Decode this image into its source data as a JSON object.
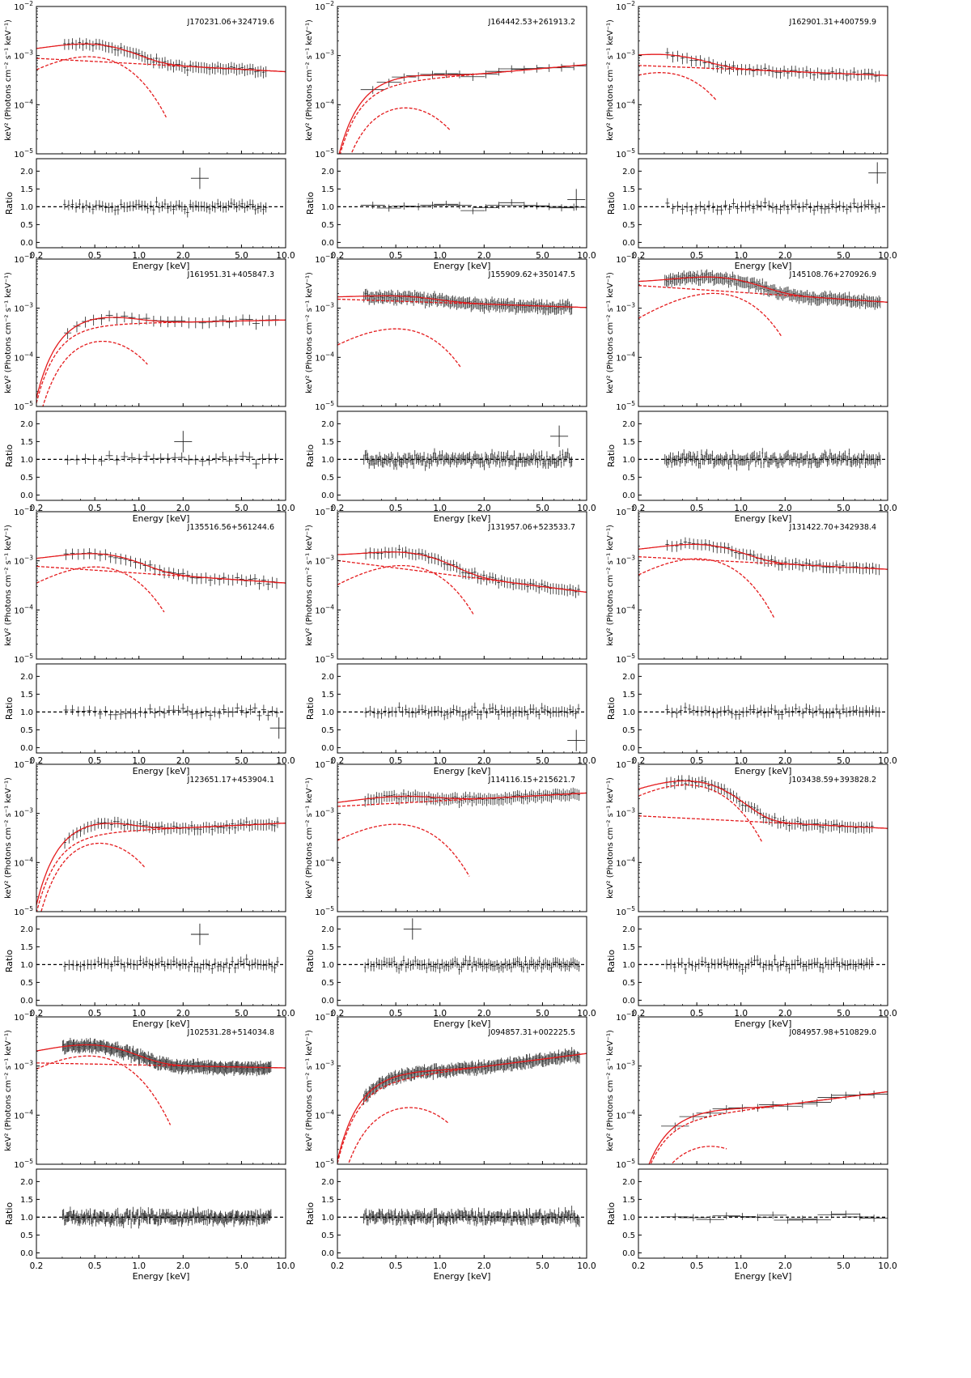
{
  "figure": {
    "colors": {
      "model": "#e41a1c",
      "data": "#222222",
      "axis": "#000000",
      "reference": "#000000"
    },
    "spectrum_ylabel": "keV² (Photons cm⁻² s⁻¹ keV⁻¹)",
    "ratio_ylabel": "Ratio",
    "xlabel": "Energy [keV]",
    "xticks": [
      "0.2",
      "0.5",
      "1.0",
      "2.0",
      "5.0",
      "10.0"
    ],
    "yticks_spectrum": [
      {
        "value": 1e-05,
        "mantissa": "10",
        "exp": "−5"
      },
      {
        "value": 0.0001,
        "mantissa": "10",
        "exp": "−4"
      },
      {
        "value": 0.001,
        "mantissa": "10",
        "exp": "−3"
      },
      {
        "value": 0.01,
        "mantissa": "10",
        "exp": "−2"
      }
    ],
    "yticks_ratio": [
      "0.0",
      "0.5",
      "1.0",
      "1.5",
      "2.0"
    ]
  },
  "chart_data": [
    {
      "type": "line",
      "title": "J170231.06+324719.6",
      "xscale": "log",
      "yscale": "log",
      "xlim": [
        0.2,
        10.0
      ],
      "ylim": [
        1e-05,
        0.01
      ],
      "ratio_ylim": [
        -0.15,
        2.35
      ],
      "model": {
        "soft_peak_keV": 0.45,
        "soft_peak": 0.00095,
        "soft_cutoff_keV": 1.55,
        "pl_norm_1keV": 0.00068,
        "pl_index_slope": -0.16,
        "absorbed": false
      },
      "data_points": 70,
      "data_range_keV": [
        0.3,
        7.5
      ],
      "ratio_outliers": [
        [
          2.6,
          1.8
        ]
      ]
    },
    {
      "type": "line",
      "title": "J164442.53+261913.2",
      "xscale": "log",
      "yscale": "log",
      "xlim": [
        0.2,
        10.0
      ],
      "ylim": [
        1e-05,
        0.01
      ],
      "ratio_ylim": [
        -0.15,
        2.35
      ],
      "model": {
        "soft_peak_keV": 0.5,
        "soft_peak": 0.0001,
        "soft_cutoff_keV": 1.2,
        "pl_norm_1keV": 0.00036,
        "pl_index_slope": 0.26,
        "absorbed": true
      },
      "data_points": 16,
      "data_range_keV": [
        0.3,
        9.0
      ],
      "ratio_outliers": [
        [
          8.5,
          1.2
        ]
      ]
    },
    {
      "type": "line",
      "title": "J162901.31+400759.9",
      "xscale": "log",
      "yscale": "log",
      "xlim": [
        0.2,
        10.0
      ],
      "ylim": [
        1e-05,
        0.01
      ],
      "ratio_ylim": [
        -0.15,
        2.35
      ],
      "model": {
        "soft_peak_keV": 0.28,
        "soft_peak": 0.00045,
        "soft_cutoff_keV": 0.68,
        "pl_norm_1keV": 0.00052,
        "pl_index_slope": -0.12,
        "absorbed": false
      },
      "data_points": 55,
      "data_range_keV": [
        0.3,
        9.0
      ],
      "ratio_outliers": [
        [
          8.5,
          1.95
        ]
      ]
    },
    {
      "type": "line",
      "title": "J161951.31+405847.3",
      "xscale": "log",
      "yscale": "log",
      "xlim": [
        0.2,
        10.0
      ],
      "ylim": [
        1e-05,
        0.01
      ],
      "ratio_ylim": [
        -0.15,
        2.35
      ],
      "model": {
        "soft_peak_keV": 0.48,
        "soft_peak": 0.00025,
        "soft_cutoff_keV": 1.15,
        "pl_norm_1keV": 0.0005,
        "pl_index_slope": 0.06,
        "absorbed": true
      },
      "data_points": 30,
      "data_range_keV": [
        0.3,
        9.0
      ],
      "ratio_outliers": [
        [
          2.0,
          1.5
        ]
      ]
    },
    {
      "type": "line",
      "title": "J155909.62+350147.5",
      "xscale": "log",
      "yscale": "log",
      "xlim": [
        0.2,
        10.0
      ],
      "ylim": [
        1e-05,
        0.01
      ],
      "ratio_ylim": [
        -0.15,
        2.35
      ],
      "model": {
        "soft_peak_keV": 0.5,
        "soft_peak": 0.00038,
        "soft_cutoff_keV": 1.4,
        "pl_norm_1keV": 0.0013,
        "pl_index_slope": -0.1,
        "absorbed": false
      },
      "data_points": 160,
      "data_range_keV": [
        0.3,
        8.0
      ],
      "ratio_outliers": [
        [
          6.5,
          1.65
        ]
      ]
    },
    {
      "type": "line",
      "title": "J145108.76+270926.9",
      "xscale": "log",
      "yscale": "log",
      "xlim": [
        0.2,
        10.0
      ],
      "ylim": [
        1e-05,
        0.01
      ],
      "ratio_ylim": [
        -0.15,
        2.35
      ],
      "model": {
        "soft_peak_keV": 0.65,
        "soft_peak": 0.002,
        "soft_cutoff_keV": 1.9,
        "pl_norm_1keV": 0.0021,
        "pl_index_slope": -0.2,
        "absorbed": false
      },
      "data_points": 160,
      "data_range_keV": [
        0.3,
        9.0
      ],
      "ratio_outliers": []
    },
    {
      "type": "line",
      "title": "J135516.56+561244.6",
      "xscale": "log",
      "yscale": "log",
      "xlim": [
        0.2,
        10.0
      ],
      "ylim": [
        1e-05,
        0.01
      ],
      "ratio_ylim": [
        -0.15,
        2.35
      ],
      "model": {
        "soft_peak_keV": 0.5,
        "soft_peak": 0.00075,
        "soft_cutoff_keV": 1.5,
        "pl_norm_1keV": 0.00056,
        "pl_index_slope": -0.2,
        "absorbed": false
      },
      "data_points": 45,
      "data_range_keV": [
        0.3,
        9.0
      ],
      "ratio_outliers": [
        [
          9.0,
          0.55
        ]
      ]
    },
    {
      "type": "line",
      "title": "J131957.06+523533.7",
      "xscale": "log",
      "yscale": "log",
      "xlim": [
        0.2,
        10.0
      ],
      "ylim": [
        1e-05,
        0.01
      ],
      "ratio_ylim": [
        -0.15,
        2.35
      ],
      "model": {
        "soft_peak_keV": 0.55,
        "soft_peak": 0.0008,
        "soft_cutoff_keV": 1.7,
        "pl_norm_1keV": 0.00055,
        "pl_index_slope": -0.38,
        "absorbed": false
      },
      "data_points": 70,
      "data_range_keV": [
        0.3,
        9.0
      ],
      "ratio_outliers": [
        [
          8.5,
          0.2
        ]
      ]
    },
    {
      "type": "line",
      "title": "J131422.70+342938.4",
      "xscale": "log",
      "yscale": "log",
      "xlim": [
        0.2,
        10.0
      ],
      "ylim": [
        1e-05,
        0.01
      ],
      "ratio_ylim": [
        -0.15,
        2.35
      ],
      "model": {
        "soft_peak_keV": 0.5,
        "soft_peak": 0.0011,
        "soft_cutoff_keV": 1.7,
        "pl_norm_1keV": 0.00095,
        "pl_index_slope": -0.15,
        "absorbed": false
      },
      "data_points": 60,
      "data_range_keV": [
        0.3,
        9.0
      ],
      "ratio_outliers": []
    },
    {
      "type": "line",
      "title": "J123651.17+453904.1",
      "xscale": "log",
      "yscale": "log",
      "xlim": [
        0.2,
        10.0
      ],
      "ylim": [
        1e-05,
        0.01
      ],
      "ratio_ylim": [
        -0.15,
        2.35
      ],
      "model": {
        "soft_peak_keV": 0.45,
        "soft_peak": 0.0003,
        "soft_cutoff_keV": 1.1,
        "pl_norm_1keV": 0.00046,
        "pl_index_slope": 0.14,
        "absorbed": true
      },
      "data_points": 70,
      "data_range_keV": [
        0.3,
        9.0
      ],
      "ratio_outliers": [
        [
          2.6,
          1.85
        ]
      ]
    },
    {
      "type": "line",
      "title": "J114116.15+215621.7",
      "xscale": "log",
      "yscale": "log",
      "xlim": [
        0.2,
        10.0
      ],
      "ylim": [
        1e-05,
        0.01
      ],
      "ratio_ylim": [
        -0.15,
        2.35
      ],
      "model": {
        "soft_peak_keV": 0.5,
        "soft_peak": 0.0006,
        "soft_cutoff_keV": 1.6,
        "pl_norm_1keV": 0.0018,
        "pl_index_slope": 0.16,
        "absorbed": false
      },
      "data_points": 100,
      "data_range_keV": [
        0.3,
        9.0
      ],
      "ratio_outliers": [
        [
          0.65,
          2.0
        ]
      ]
    },
    {
      "type": "line",
      "title": "J103438.59+393828.2",
      "xscale": "log",
      "yscale": "log",
      "xlim": [
        0.2,
        10.0
      ],
      "ylim": [
        1e-05,
        0.01
      ],
      "ratio_ylim": [
        -0.15,
        2.35
      ],
      "model": {
        "soft_peak_keV": 0.42,
        "soft_peak": 0.0038,
        "soft_cutoff_keV": 1.4,
        "pl_norm_1keV": 0.0007,
        "pl_index_slope": -0.15,
        "absorbed": false
      },
      "data_points": 70,
      "data_range_keV": [
        0.3,
        8.0
      ],
      "ratio_outliers": []
    },
    {
      "type": "line",
      "title": "J102531.28+514034.8",
      "xscale": "log",
      "yscale": "log",
      "xlim": [
        0.2,
        10.0
      ],
      "ylim": [
        1e-05,
        0.01
      ],
      "ratio_ylim": [
        -0.15,
        2.35
      ],
      "model": {
        "soft_peak_keV": 0.45,
        "soft_peak": 0.0016,
        "soft_cutoff_keV": 1.65,
        "pl_norm_1keV": 0.00105,
        "pl_index_slope": -0.06,
        "absorbed": false
      },
      "data_points": 220,
      "data_range_keV": [
        0.3,
        8.0
      ],
      "ratio_outliers": []
    },
    {
      "type": "line",
      "title": "J094857.31+002225.5",
      "xscale": "log",
      "yscale": "log",
      "xlim": [
        0.2,
        10.0
      ],
      "ylim": [
        1e-05,
        0.01
      ],
      "ratio_ylim": [
        -0.15,
        2.35
      ],
      "model": {
        "soft_peak_keV": 0.55,
        "soft_peak": 0.00016,
        "soft_cutoff_keV": 1.15,
        "pl_norm_1keV": 0.00075,
        "pl_index_slope": 0.38,
        "absorbed": true
      },
      "data_points": 200,
      "data_range_keV": [
        0.3,
        9.0
      ],
      "ratio_outliers": []
    },
    {
      "type": "line",
      "title": "J084957.98+510829.0",
      "xscale": "log",
      "yscale": "log",
      "xlim": [
        0.2,
        10.0
      ],
      "ylim": [
        1e-05,
        0.01
      ],
      "ratio_ylim": [
        -0.15,
        2.35
      ],
      "model": {
        "soft_peak_keV": 0.55,
        "soft_peak": 2.6e-05,
        "soft_cutoff_keV": 0.8,
        "pl_norm_1keV": 0.000125,
        "pl_index_slope": 0.38,
        "absorbed": true
      },
      "data_points": 14,
      "data_range_keV": [
        0.3,
        9.0
      ],
      "ratio_outliers": []
    }
  ]
}
